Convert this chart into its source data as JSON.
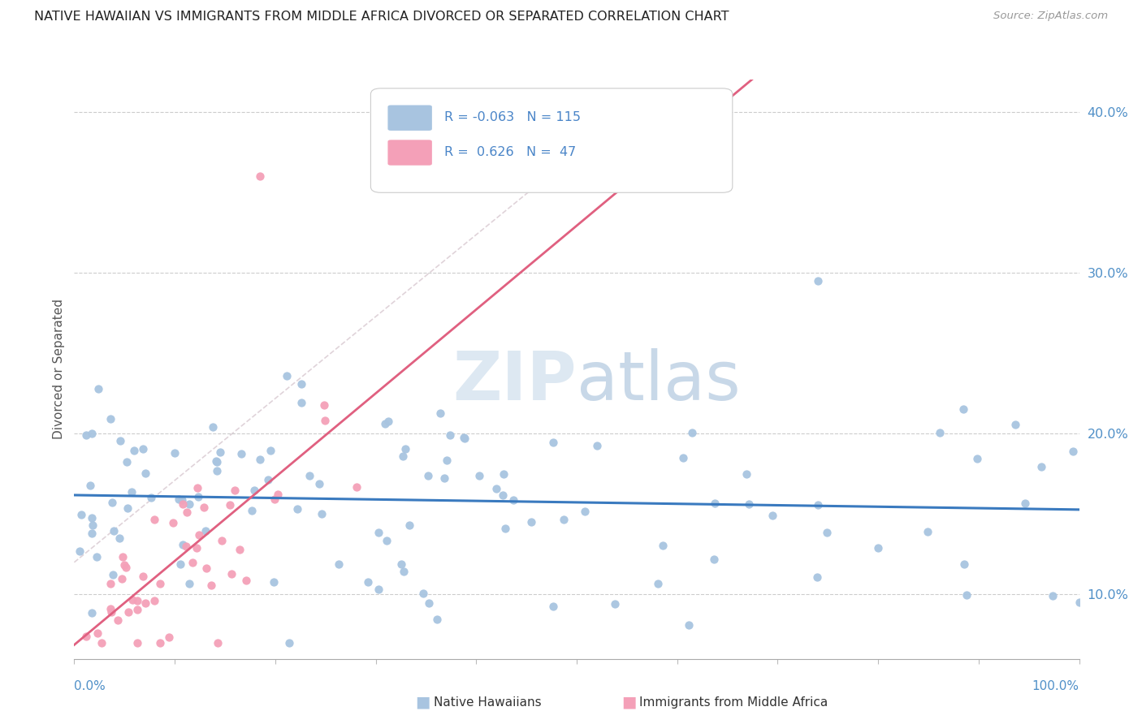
{
  "title": "NATIVE HAWAIIAN VS IMMIGRANTS FROM MIDDLE AFRICA DIVORCED OR SEPARATED CORRELATION CHART",
  "source": "Source: ZipAtlas.com",
  "ylabel": "Divorced or Separated",
  "ylim": [
    0.06,
    0.42
  ],
  "xlim": [
    0.0,
    1.0
  ],
  "yticks": [
    0.1,
    0.2,
    0.3,
    0.4
  ],
  "ytick_labels": [
    "10.0%",
    "20.0%",
    "30.0%",
    "40.0%"
  ],
  "blue_R": -0.063,
  "blue_N": 115,
  "pink_R": 0.626,
  "pink_N": 47,
  "blue_color": "#a8c4e0",
  "pink_color": "#f4a0b8",
  "blue_line_color": "#3a7abf",
  "pink_line_color": "#e06080",
  "diag_line_color": "#d0c0c8"
}
